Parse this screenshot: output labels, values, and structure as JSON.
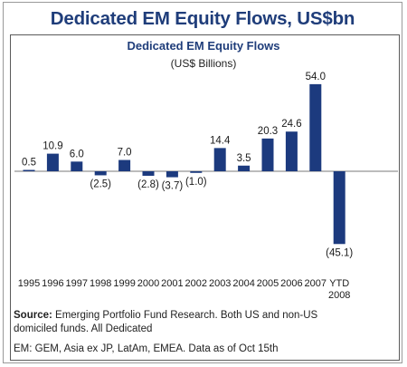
{
  "title": "Dedicated EM Equity Flows, US$bn",
  "chart_data": {
    "type": "bar",
    "title": "Dedicated EM Equity Flows",
    "subtitle": "(US$ Billions)",
    "xlabel": "",
    "ylabel": "",
    "categories": [
      "1995",
      "1996",
      "1997",
      "1998",
      "1999",
      "2000",
      "2001",
      "2002",
      "2003",
      "2004",
      "2005",
      "2006",
      "2007",
      "YTD 2008"
    ],
    "values": [
      0.5,
      10.9,
      6.0,
      -2.5,
      7.0,
      -2.8,
      -3.7,
      -1.0,
      14.4,
      3.5,
      20.3,
      24.6,
      54.0,
      -45.1
    ],
    "value_labels": [
      "0.5",
      "10.9",
      "6.0",
      "(2.5)",
      "7.0",
      "(2.8)",
      "(3.7)",
      "(1.0)",
      "14.4",
      "3.5",
      "20.3",
      "24.6",
      "54.0",
      "(45.1)"
    ],
    "bar_color": "#1c3a7e",
    "zero_line": true,
    "grid": false,
    "legend": "none",
    "ylim": [
      -50,
      60
    ]
  },
  "source": {
    "label": "Source:",
    "text": " Emerging Portfolio Fund Research. Both US and non-US domiciled funds. All Dedicated"
  },
  "note": "EM: GEM, Asia ex JP, LatAm, EMEA. Data as of Oct 15th"
}
